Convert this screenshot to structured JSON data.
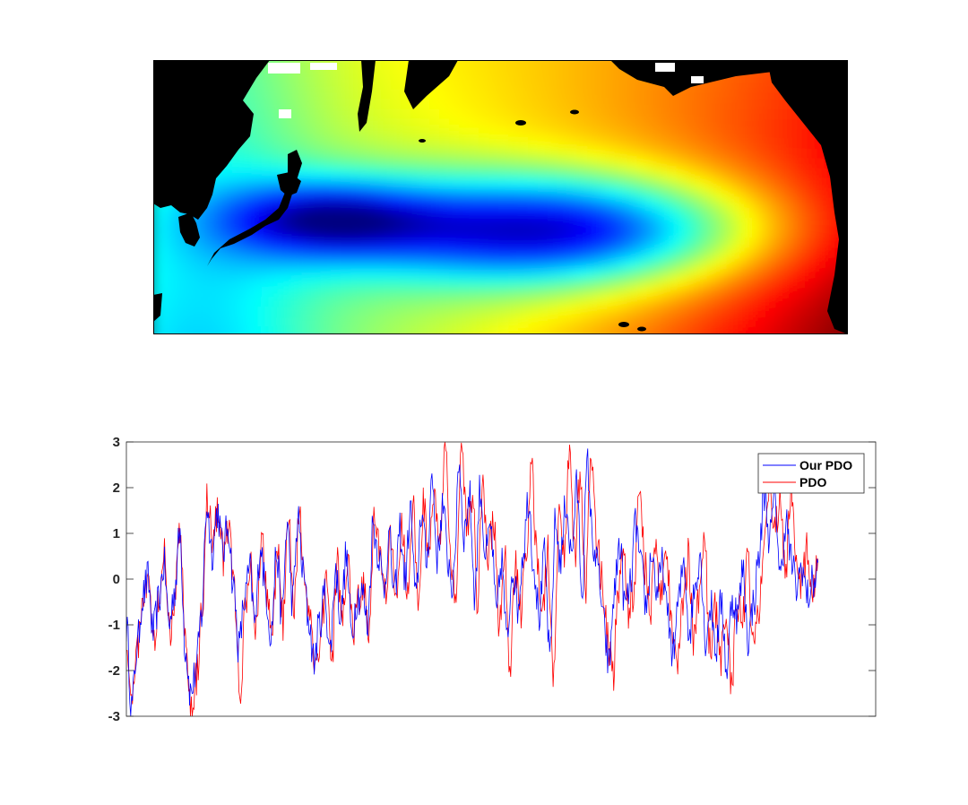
{
  "map": {
    "colormap": "jet",
    "land_color": "#000000",
    "missing_color": "#ffffff"
  },
  "chart_data": {
    "type": "line",
    "ylim": [
      -3,
      3
    ],
    "yticks": [
      -3,
      -2,
      -1,
      0,
      1,
      2,
      3
    ],
    "ytick_labels": [
      "-3",
      "-2",
      "-1",
      "0",
      "1",
      "2",
      "3"
    ],
    "xlabel": "",
    "ylabel": "",
    "title": "",
    "grid": false,
    "legend_position": "top-right",
    "n_points": 800,
    "x": "monthly index 1..800 (no tick labels shown)",
    "series": [
      {
        "name": "Our PDO",
        "color": "#0000ff",
        "anchor_values": [
          -1.0,
          -2.8,
          -1.5,
          -0.4,
          0.0,
          -1.2,
          -0.5,
          0.3,
          -1.0,
          -0.2,
          1.0,
          -1.5,
          -2.5,
          -2.0,
          -0.8,
          1.6,
          0.6,
          1.5,
          0.6,
          1.2,
          -0.2,
          -1.5,
          -0.5,
          0.2,
          -1.0,
          0.8,
          -0.3,
          -1.2,
          0.6,
          -0.8,
          1.2,
          -0.5,
          1.3,
          0.1,
          -0.9,
          -1.8,
          -1.0,
          -0.3,
          -1.6,
          0.2,
          -0.8,
          0.5,
          -1.2,
          -0.4,
          -0.3,
          -1.0,
          1.2,
          0.6,
          -0.2,
          0.9,
          -0.4,
          1.1,
          0.0,
          1.5,
          -0.5,
          1.5,
          0.4,
          2.2,
          0.5,
          1.6,
          0.4,
          -0.2,
          2.6,
          1.0,
          1.8,
          -0.3,
          2.0,
          0.5,
          1.1,
          -0.8,
          0.4,
          -1.4,
          0.3,
          -0.6,
          0.6,
          1.8,
          0.3,
          -0.8,
          0.5,
          -1.8,
          1.2,
          0.4,
          1.7,
          0.5,
          2.0,
          -0.2,
          2.5,
          0.8,
          0.2,
          -1.0,
          -1.9,
          -0.3,
          0.8,
          -0.6,
          -0.2,
          1.2,
          0.2,
          -0.6,
          0.6,
          -0.3,
          0.3,
          -0.9,
          -1.6,
          -0.5,
          0.4,
          -1.2,
          -0.2,
          0.6,
          -1.3,
          -0.6,
          -1.5,
          -0.5,
          -2.0,
          -0.4,
          -0.8,
          0.2,
          -1.3,
          -0.5,
          0.5,
          1.9,
          0.9,
          1.8,
          0.0,
          1.3,
          0.4,
          -0.2,
          0.3,
          -0.4,
          -0.1,
          0.2
        ]
      },
      {
        "name": "PDO",
        "color": "#ff0000",
        "anchor_values": [
          -1.2,
          -2.9,
          -1.6,
          -0.3,
          0.1,
          -1.4,
          -0.4,
          0.5,
          -1.1,
          -0.3,
          1.1,
          -1.6,
          -3.0,
          -2.1,
          -0.7,
          1.8,
          0.7,
          1.6,
          0.5,
          1.3,
          -0.3,
          -2.7,
          -0.6,
          0.3,
          -1.1,
          0.9,
          -0.4,
          -1.3,
          0.7,
          -0.9,
          1.3,
          -0.6,
          1.4,
          0.2,
          -1.0,
          -2.0,
          -1.1,
          -0.2,
          -1.8,
          0.3,
          -0.9,
          0.6,
          -1.3,
          -0.5,
          -0.2,
          -1.1,
          1.4,
          0.7,
          -0.3,
          1.0,
          -0.5,
          1.2,
          -0.1,
          1.6,
          -0.6,
          1.7,
          0.5,
          2.1,
          0.6,
          3.0,
          0.3,
          -0.3,
          2.7,
          1.1,
          1.9,
          -0.4,
          2.0,
          0.6,
          1.3,
          -0.9,
          0.5,
          -2.2,
          0.4,
          -0.7,
          0.7,
          2.6,
          0.4,
          -0.9,
          0.6,
          -2.1,
          1.3,
          0.5,
          2.8,
          0.6,
          2.3,
          -0.3,
          2.8,
          0.9,
          0.1,
          -1.2,
          -2.2,
          -0.4,
          0.9,
          -0.7,
          -0.3,
          2.1,
          0.3,
          -0.7,
          0.7,
          -0.4,
          0.4,
          -1.0,
          -1.7,
          -0.6,
          0.5,
          -1.3,
          -0.3,
          0.8,
          -1.5,
          -0.7,
          -1.7,
          -0.6,
          -2.3,
          -0.5,
          -0.9,
          0.3,
          -1.4,
          -0.6,
          0.6,
          2.2,
          1.0,
          1.9,
          0.1,
          2.0,
          0.5,
          -0.1,
          0.6,
          -0.3,
          0.2
        ]
      }
    ]
  }
}
